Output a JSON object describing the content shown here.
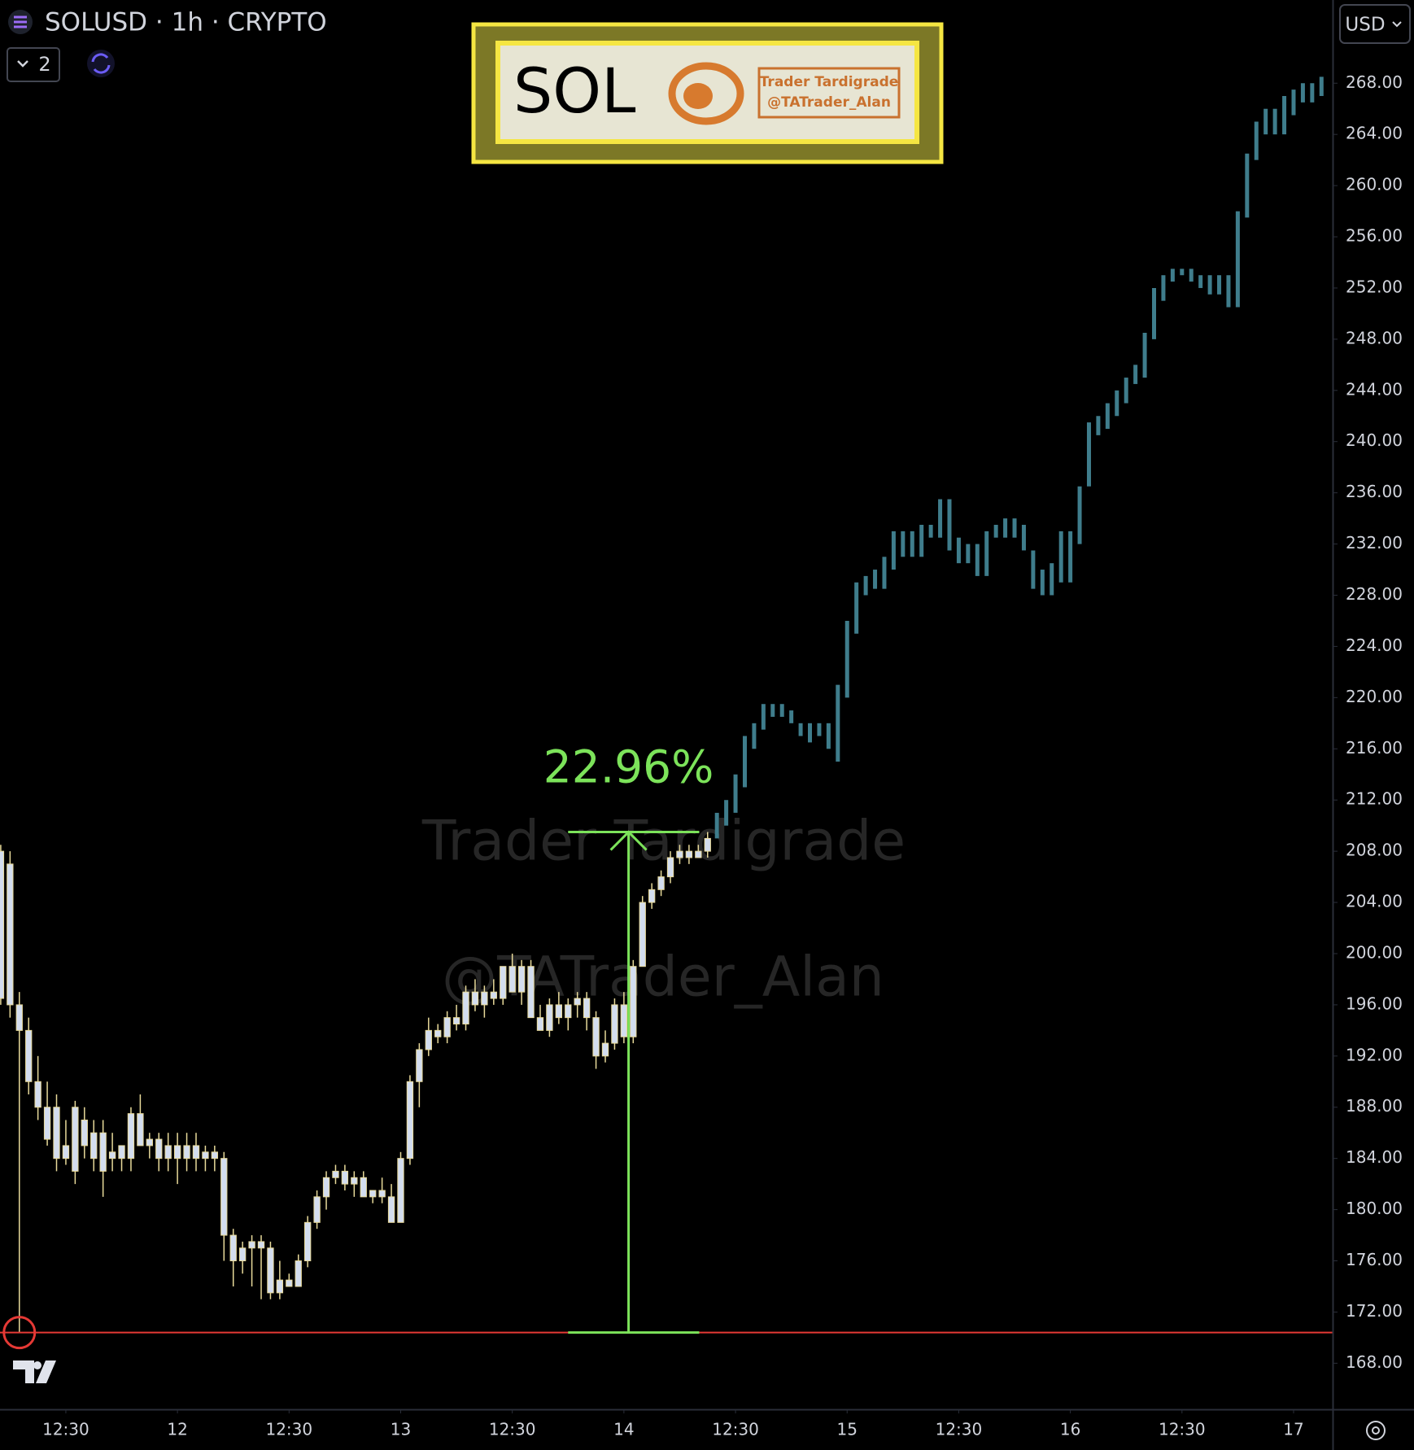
{
  "header": {
    "symbol": "SOLUSD · 1h · CRYPTO",
    "layers": "2",
    "currency": "USD"
  },
  "logo": {
    "ticker": "SOL",
    "name": "Trader Tardigrade",
    "handle": "@TATrader_Alan"
  },
  "watermark": {
    "line1": "Trader Tardigrade",
    "line2": "@TATrader_Alan"
  },
  "chart_data": {
    "type": "candlestick",
    "xlim": [
      4.92,
      148.2
    ],
    "ylim": [
      164.4,
      274.5
    ],
    "xticks": [
      {
        "value": 12,
        "label": "12:30"
      },
      {
        "value": 24,
        "label": "12"
      },
      {
        "value": 36,
        "label": "12:30"
      },
      {
        "value": 48,
        "label": "13"
      },
      {
        "value": 60,
        "label": "12:30"
      },
      {
        "value": 72,
        "label": "14"
      },
      {
        "value": 84,
        "label": "12:30"
      },
      {
        "value": 96,
        "label": "15"
      },
      {
        "value": 108,
        "label": "12:30"
      },
      {
        "value": 120,
        "label": "16"
      },
      {
        "value": 132,
        "label": "12:30"
      },
      {
        "value": 144,
        "label": "17"
      }
    ],
    "yticks": [
      {
        "value": 168,
        "label": "168.00"
      },
      {
        "value": 172,
        "label": "172.00"
      },
      {
        "value": 176,
        "label": "176.00"
      },
      {
        "value": 180,
        "label": "180.00"
      },
      {
        "value": 184,
        "label": "184.00"
      },
      {
        "value": 188,
        "label": "188.00"
      },
      {
        "value": 192,
        "label": "192.00"
      },
      {
        "value": 196,
        "label": "196.00"
      },
      {
        "value": 200,
        "label": "200.00"
      },
      {
        "value": 204,
        "label": "204.00"
      },
      {
        "value": 208,
        "label": "208.00"
      },
      {
        "value": 212,
        "label": "212.00"
      },
      {
        "value": 216,
        "label": "216.00"
      },
      {
        "value": 220,
        "label": "220.00"
      },
      {
        "value": 224,
        "label": "224.00"
      },
      {
        "value": 228,
        "label": "228.00"
      },
      {
        "value": 232,
        "label": "232.00"
      },
      {
        "value": 236,
        "label": "236.00"
      },
      {
        "value": 240,
        "label": "240.00"
      },
      {
        "value": 244,
        "label": "244.00"
      },
      {
        "value": 248,
        "label": "248.00"
      },
      {
        "value": 252,
        "label": "252.00"
      },
      {
        "value": 256,
        "label": "256.00"
      },
      {
        "value": 260,
        "label": "260.00"
      },
      {
        "value": 264,
        "label": "264.00"
      },
      {
        "value": 268,
        "label": "268.00"
      }
    ],
    "candles": {
      "body_color": "#d3ddef",
      "wick_color": "#e8da9a",
      "x": [
        5,
        6,
        7,
        8,
        9,
        10,
        11,
        12,
        13,
        14,
        15,
        16,
        17,
        18,
        19,
        20,
        21,
        22,
        23,
        24,
        25,
        26,
        27,
        28,
        29,
        30,
        31,
        32,
        33,
        34,
        35,
        36,
        37,
        38,
        39,
        40,
        41,
        42,
        43,
        44,
        45,
        46,
        47,
        48,
        49,
        50,
        51,
        52,
        53,
        54,
        55,
        56,
        57,
        58,
        59,
        60,
        61,
        62,
        63,
        64,
        65,
        66,
        67,
        68,
        69,
        70,
        71,
        72,
        73,
        74,
        75,
        76,
        77,
        78,
        79,
        80,
        81
      ],
      "ohlc": [
        [
          208,
          208.5,
          196,
          196.5
        ],
        [
          207,
          208,
          195,
          196
        ],
        [
          196,
          197,
          170.4,
          194
        ],
        [
          194,
          195,
          189,
          190
        ],
        [
          190,
          192,
          187,
          188
        ],
        [
          188,
          190,
          185,
          185.5
        ],
        [
          188,
          189,
          183,
          184
        ],
        [
          185,
          187,
          183.5,
          184
        ],
        [
          183,
          188.5,
          182,
          188
        ],
        [
          187,
          188,
          184,
          185
        ],
        [
          186,
          187,
          183,
          184
        ],
        [
          186,
          187,
          181,
          183
        ],
        [
          184,
          186,
          183,
          184.5
        ],
        [
          184,
          185,
          183,
          185
        ],
        [
          184,
          188,
          183,
          187.5
        ],
        [
          187.5,
          189,
          185,
          185
        ],
        [
          185,
          186,
          184,
          185.5
        ],
        [
          185.5,
          186,
          183,
          184
        ],
        [
          184,
          186,
          183,
          185
        ],
        [
          185,
          186,
          182,
          184
        ],
        [
          184,
          186,
          183,
          185
        ],
        [
          185,
          186,
          183,
          184
        ],
        [
          184,
          185,
          183,
          184.5
        ],
        [
          184.5,
          185,
          183,
          184
        ],
        [
          184,
          184.5,
          176,
          178
        ],
        [
          178,
          178.5,
          174,
          176
        ],
        [
          176,
          177.5,
          175,
          177
        ],
        [
          177,
          178,
          174,
          177.5
        ],
        [
          177.5,
          178,
          173,
          177
        ],
        [
          177,
          177.5,
          173,
          173.5
        ],
        [
          173.5,
          176,
          173,
          174.5
        ],
        [
          174.5,
          175,
          174,
          174
        ],
        [
          174,
          176.5,
          174,
          176
        ],
        [
          176,
          179.5,
          175.5,
          179
        ],
        [
          179,
          181.5,
          178.5,
          181
        ],
        [
          181,
          183,
          180,
          182.5
        ],
        [
          182.5,
          183.5,
          182,
          183
        ],
        [
          183,
          183.5,
          181.5,
          182
        ],
        [
          182,
          183,
          181,
          182.5
        ],
        [
          182.5,
          183,
          181,
          181
        ],
        [
          181,
          181.5,
          180.5,
          181.5
        ],
        [
          181.5,
          182.5,
          180.5,
          181
        ],
        [
          181,
          182,
          179,
          179
        ],
        [
          179,
          184.5,
          179,
          184
        ],
        [
          184,
          190.5,
          183.5,
          190
        ],
        [
          190,
          193,
          188,
          192.5
        ],
        [
          192.5,
          195,
          192,
          194
        ],
        [
          194,
          194.5,
          193,
          193.5
        ],
        [
          193.5,
          195.5,
          193,
          195
        ],
        [
          195,
          196,
          194,
          194.5
        ],
        [
          194.5,
          197.5,
          194,
          197
        ],
        [
          197,
          198,
          195.5,
          196
        ],
        [
          196,
          197.5,
          195,
          197
        ],
        [
          197,
          198,
          196,
          196.5
        ],
        [
          196.5,
          199,
          196,
          199
        ],
        [
          199,
          200,
          197,
          197
        ],
        [
          197,
          199.5,
          196,
          199
        ],
        [
          199,
          199.5,
          195,
          195
        ],
        [
          195,
          196,
          194,
          194
        ],
        [
          194,
          196.5,
          193.5,
          196
        ],
        [
          196,
          197,
          194.5,
          195
        ],
        [
          195,
          196.5,
          194,
          196
        ],
        [
          196,
          197,
          195,
          196.5
        ],
        [
          196.5,
          197,
          194,
          195
        ],
        [
          195,
          195.5,
          191,
          192
        ],
        [
          192,
          194,
          191.5,
          193
        ],
        [
          193,
          196.5,
          192.5,
          196
        ],
        [
          196,
          197,
          193,
          193.5
        ],
        [
          193.5,
          199.5,
          193,
          199
        ],
        [
          199,
          204.5,
          199,
          204
        ],
        [
          204,
          205.5,
          203.5,
          205
        ],
        [
          205,
          206.5,
          204.5,
          206
        ],
        [
          206,
          208,
          205.5,
          207.5
        ],
        [
          207.5,
          208.5,
          207,
          208
        ],
        [
          208,
          208.5,
          207,
          207.5
        ],
        [
          207.5,
          208.5,
          207.5,
          208
        ],
        [
          208,
          209.5,
          207.5,
          209
        ]
      ]
    },
    "projection": {
      "color": "#3f7d8c",
      "x": [
        82,
        83,
        84,
        85,
        86,
        87,
        88,
        89,
        90,
        91,
        92,
        93,
        94,
        95,
        96,
        97,
        98,
        99,
        100,
        101,
        102,
        103,
        104,
        105,
        106,
        107,
        108,
        109,
        110,
        111,
        112,
        113,
        114,
        115,
        116,
        117,
        118,
        119,
        120,
        121,
        122,
        123,
        124,
        125,
        126,
        127,
        128,
        129,
        130,
        131,
        132,
        133,
        134,
        135,
        136,
        137,
        138,
        139,
        140,
        141,
        142,
        143,
        144,
        145,
        146,
        147
      ],
      "low": [
        209,
        210,
        211,
        213,
        216,
        217.5,
        218.5,
        218.5,
        218,
        217,
        216.5,
        217,
        216,
        215,
        220,
        225,
        228,
        228.5,
        228.5,
        230,
        231,
        231,
        231,
        232.5,
        232.5,
        231.5,
        230.5,
        230.5,
        229.5,
        229.5,
        232.5,
        232.5,
        232.5,
        231.5,
        228.5,
        228,
        228,
        229,
        229,
        232,
        236.5,
        240.5,
        241,
        242,
        243,
        244.5,
        245,
        248,
        251,
        252.5,
        253,
        252.5,
        252,
        251.5,
        251.5,
        250.5,
        250.5,
        257.5,
        262,
        264,
        264,
        264,
        265.5,
        266.5,
        266.5,
        267
      ],
      "high": [
        211,
        212,
        214,
        217,
        218,
        219.5,
        219.5,
        219.5,
        219,
        218,
        218,
        218,
        218,
        221,
        226,
        229,
        229.5,
        230,
        231,
        233,
        233,
        233,
        233.5,
        233.5,
        235.5,
        235.5,
        232.5,
        232,
        232,
        233,
        233.5,
        234,
        234,
        233.5,
        231.5,
        230,
        230.5,
        233,
        233,
        236.5,
        241.5,
        242,
        243,
        244,
        245,
        246,
        248.5,
        252,
        253,
        253.5,
        253.5,
        253.5,
        253,
        253,
        253,
        253,
        258,
        262.5,
        265,
        266,
        266,
        267,
        267.5,
        268,
        268,
        268.5
      ]
    },
    "level": {
      "value": 170.4,
      "x": 7,
      "color": "#e53935"
    },
    "measure": {
      "from": 170.4,
      "to": 209.5,
      "x": 72.5,
      "x_from": 66,
      "x_to": 80.1,
      "label": "22.96%",
      "color": "#7ce35a"
    }
  }
}
